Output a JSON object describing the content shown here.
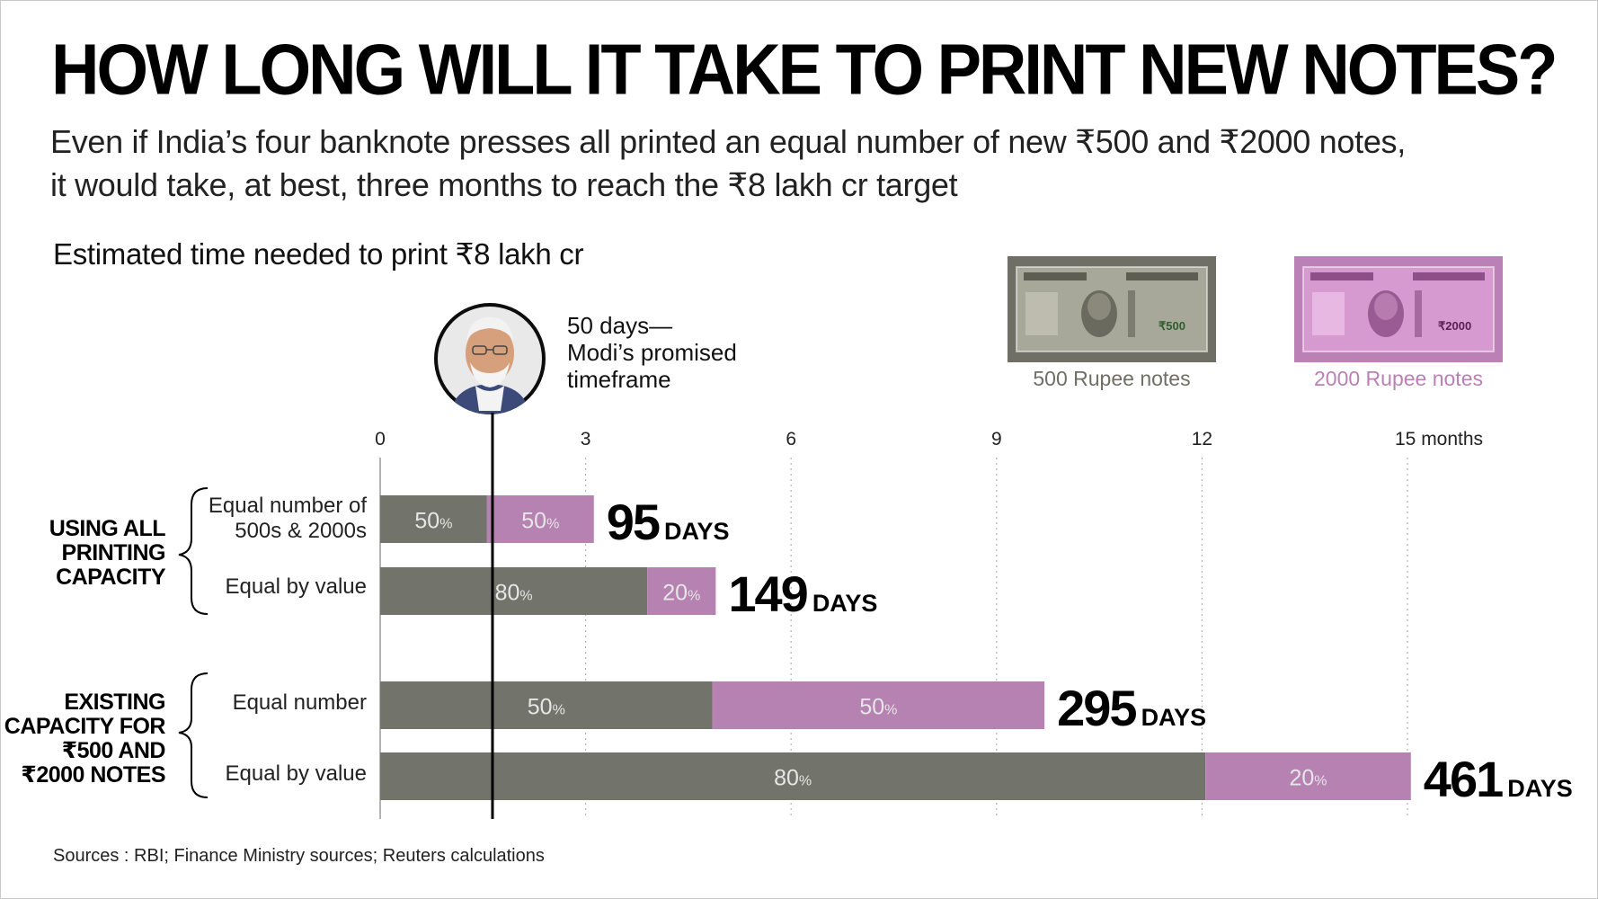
{
  "title": "HOW LONG WILL IT TAKE TO PRINT NEW NOTES?",
  "subtitle_lines": [
    "Even if India’s four banknote presses all printed an equal number of new ₹500 and ₹2000 notes,",
    "it would take, at best, three months to reach the ₹8 lakh cr target"
  ],
  "chart_heading": "Estimated time needed to print ₹8 lakh cr",
  "marker": {
    "annotation": "50 days—\nModi’s promised\ntimeframe",
    "value_months": 1.64
  },
  "notes": {
    "note_500": {
      "caption": "500 Rupee notes",
      "frame_color": "#6f6f66",
      "body_color": "#a8a89a",
      "denomination": "₹500"
    },
    "note_2000": {
      "caption": "2000 Rupee notes",
      "frame_color": "#bb80b5",
      "body_color": "#d79ad0",
      "denomination": "₹2000"
    }
  },
  "groups": [
    {
      "label": "USING ALL\nPRINTING\nCAPACITY"
    },
    {
      "label": "EXISTING\nCAPACITY FOR\n₹500 AND\n₹2000 NOTES"
    }
  ],
  "source": "Sources : RBI; Finance Ministry sources; Reuters calculations",
  "chart_data": {
    "type": "bar",
    "orientation": "horizontal",
    "stacked": true,
    "x_axis_unit": "months",
    "x_ticks": [
      0,
      3,
      6,
      9,
      12,
      15
    ],
    "x_tick_labels": [
      "0",
      "3",
      "6",
      "9",
      "12",
      "15 months"
    ],
    "xlim": [
      0,
      15.6
    ],
    "grid": "vertical dotted",
    "colors": {
      "note_500": "#72736a",
      "note_2000": "#b582b2"
    },
    "bars": [
      {
        "group": 0,
        "label": "Equal number of\n500s & 2000s",
        "total_days": 95,
        "total_label": "95",
        "unit_label": "DAYS",
        "segments": [
          {
            "note": "note_500",
            "months": 1.56,
            "pct": "50"
          },
          {
            "note": "note_2000",
            "months": 1.56,
            "pct": "50"
          }
        ]
      },
      {
        "group": 0,
        "label": "Equal by value",
        "total_days": 149,
        "total_label": "149",
        "unit_label": "DAYS",
        "segments": [
          {
            "note": "note_500",
            "months": 3.9,
            "pct": "80"
          },
          {
            "note": "note_2000",
            "months": 1.0,
            "pct": "20"
          }
        ]
      },
      {
        "group": 1,
        "label": "Equal number",
        "total_days": 295,
        "total_label": "295",
        "unit_label": "DAYS",
        "segments": [
          {
            "note": "note_500",
            "months": 4.85,
            "pct": "50"
          },
          {
            "note": "note_2000",
            "months": 4.85,
            "pct": "50"
          }
        ]
      },
      {
        "group": 1,
        "label": "Equal by value",
        "total_days": 461,
        "total_label": "461",
        "unit_label": "DAYS",
        "segments": [
          {
            "note": "note_500",
            "months": 12.05,
            "pct": "80"
          },
          {
            "note": "note_2000",
            "months": 3.0,
            "pct": "20"
          }
        ]
      }
    ]
  }
}
